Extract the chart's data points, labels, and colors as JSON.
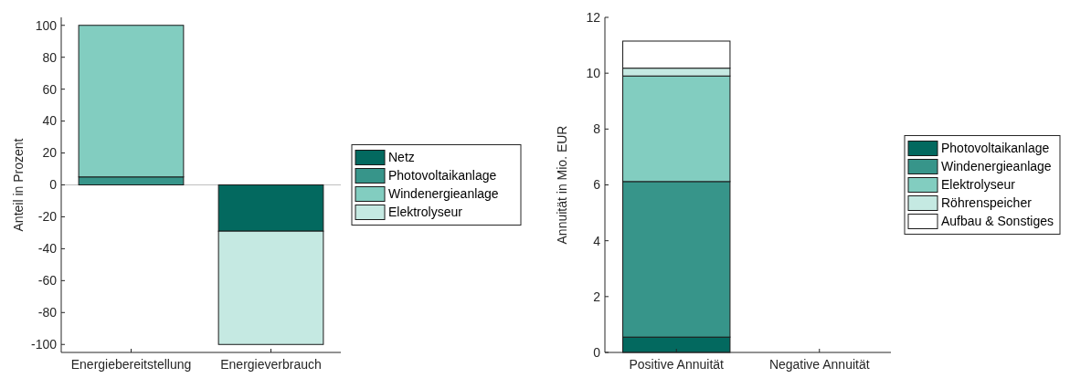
{
  "chart_data": [
    {
      "type": "bar",
      "stacked": true,
      "ylabel": "Anteil in Prozent",
      "categories": [
        "Energiebereitstellung",
        "Energieverbrauch"
      ],
      "ylim": [
        -105,
        105
      ],
      "yticks": [
        -100,
        -80,
        -60,
        -40,
        -20,
        0,
        20,
        40,
        60,
        80,
        100
      ],
      "legend": "right",
      "ref_lines": [
        {
          "axis": "y",
          "value": 0,
          "color": "#bfbfbf"
        }
      ],
      "series": [
        {
          "name": "Netz",
          "color": "#03695f",
          "values": [
            0,
            -29
          ]
        },
        {
          "name": "Photovoltaikanlage",
          "color": "#37958a",
          "values": [
            5,
            0
          ]
        },
        {
          "name": "Windenergieanlage",
          "color": "#82cdc0",
          "values": [
            95,
            0
          ]
        },
        {
          "name": "Elektrolyseur",
          "color": "#c5e9e2",
          "values": [
            0,
            -71
          ]
        }
      ]
    },
    {
      "type": "bar",
      "stacked": true,
      "ylabel": "Annuität in Mio. EUR",
      "categories": [
        "Positive Annuität",
        "Negative Annuität"
      ],
      "ylim": [
        0,
        12
      ],
      "yticks": [
        0,
        2,
        4,
        6,
        8,
        10,
        12
      ],
      "legend": "right",
      "series": [
        {
          "name": "Photovoltaikanlage",
          "color": "#03695f",
          "values": [
            0.55,
            0
          ]
        },
        {
          "name": "Windenergieanlage",
          "color": "#37958a",
          "values": [
            5.57,
            0
          ]
        },
        {
          "name": "Elektrolyseur",
          "color": "#82cdc0",
          "values": [
            3.78,
            0
          ]
        },
        {
          "name": "Röhrenspeicher",
          "color": "#c5e9e2",
          "values": [
            0.28,
            0
          ]
        },
        {
          "name": "Aufbau & Sonstiges",
          "color": "#ffffff",
          "values": [
            0.97,
            0
          ]
        }
      ]
    }
  ]
}
